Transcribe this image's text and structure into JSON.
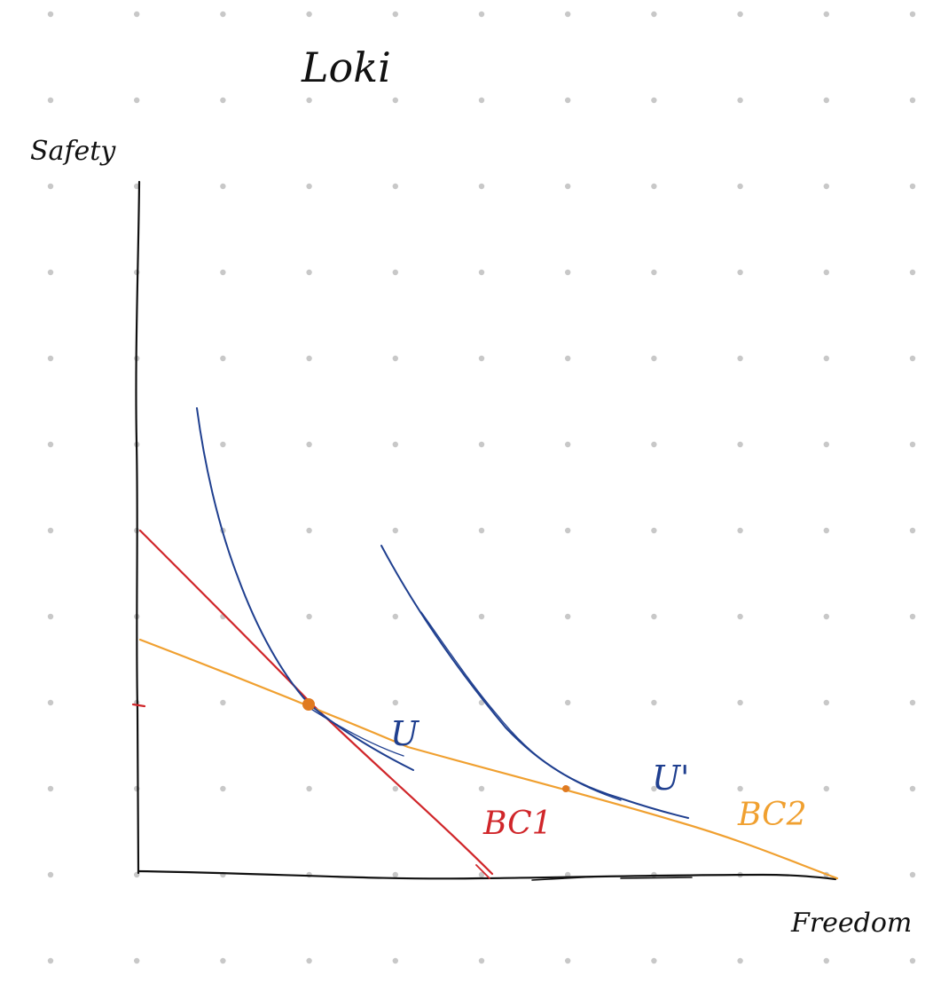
{
  "title": "Loki",
  "axes": {
    "y_label": "Safety",
    "x_label": "Freedom"
  },
  "curves": {
    "u": {
      "label": "U",
      "color": "#1f3f8f"
    },
    "u_prime": {
      "label": "U'",
      "color": "#1f3f8f"
    }
  },
  "budget_lines": {
    "bc1": {
      "label": "BC1",
      "color": "#d0262a"
    },
    "bc2": {
      "label": "BC2",
      "color": "#f0a030"
    }
  },
  "colors": {
    "background": "#ffffff",
    "grid_dot": "#c8c8c8",
    "axis": "#111111",
    "tangency_point": "#e07a20"
  }
}
